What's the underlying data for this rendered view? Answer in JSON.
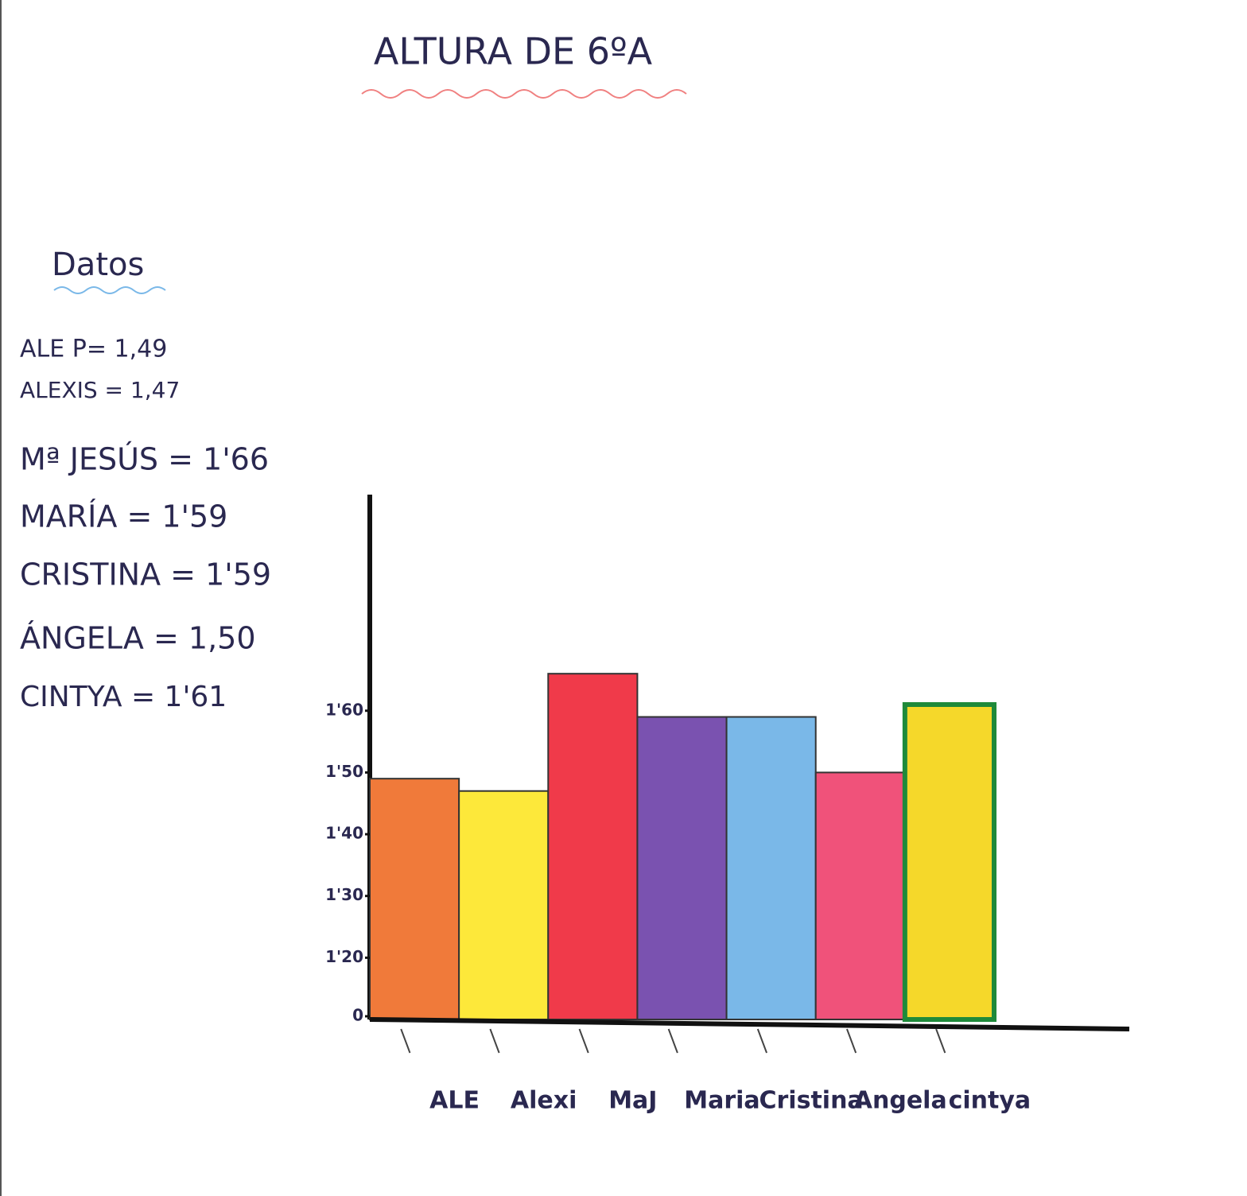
{
  "chart_data": {
    "type": "bar",
    "title": "ALTURA DE 6ºA",
    "notes_title": "Datos",
    "notes": [
      "ALE P= 1,49",
      "ALEXIS = 1,47",
      "Mª JESÚS = 1'66",
      "MARÍA = 1'59",
      "CRISTINA = 1'59",
      "ÁNGELA = 1,50",
      "CINTYA = 1'61"
    ],
    "categories": [
      "ALE",
      "Alexi",
      "MaJ",
      "Maria",
      "Cristina",
      "Angela",
      "cintya"
    ],
    "values": [
      1.49,
      1.47,
      1.66,
      1.59,
      1.59,
      1.5,
      1.61
    ],
    "colors": [
      "#f07a3a",
      "#fde83a",
      "#f03a4a",
      "#7a52b0",
      "#7ab8e8",
      "#f0527a",
      "#f5d82a"
    ],
    "ylim": [
      1.1,
      1.95
    ],
    "axis_break": true,
    "yticks": [
      {
        "value": 0,
        "label": "0"
      },
      {
        "value": 1.2,
        "label": "1'20"
      },
      {
        "value": 1.3,
        "label": "1'30"
      },
      {
        "value": 1.4,
        "label": "1'40"
      },
      {
        "value": 1.5,
        "label": "1'50"
      },
      {
        "value": 1.6,
        "label": "1'60"
      }
    ],
    "grid": false
  }
}
